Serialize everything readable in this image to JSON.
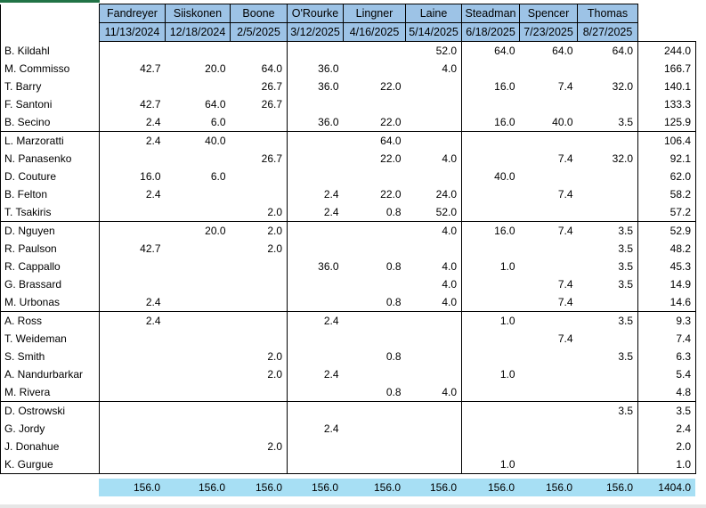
{
  "colors": {
    "header_bg": "#9DC3E6",
    "footer_bg": "#A7DFF4",
    "accent_green": "#217346"
  },
  "table": {
    "columns": [
      {
        "name": "Fandreyer",
        "date": "11/13/2024"
      },
      {
        "name": "Siiskonen",
        "date": "12/18/2024"
      },
      {
        "name": "Boone",
        "date": "2/5/2025"
      },
      {
        "name": "O'Rourke",
        "date": "3/12/2025"
      },
      {
        "name": "Lingner",
        "date": "4/16/2025"
      },
      {
        "name": "Laine",
        "date": "5/14/2025"
      },
      {
        "name": "Steadman",
        "date": "6/18/2025"
      },
      {
        "name": "Spencer",
        "date": "7/23/2025"
      },
      {
        "name": "Thomas",
        "date": "8/27/2025"
      }
    ],
    "rows": [
      {
        "label": "B. Kildahl",
        "values": [
          "",
          "",
          "",
          "",
          "",
          "52.0",
          "64.0",
          "64.0",
          "64.0"
        ],
        "total": "244.0"
      },
      {
        "label": "M. Commisso",
        "values": [
          "42.7",
          "20.0",
          "64.0",
          "36.0",
          "",
          "4.0",
          "",
          "",
          ""
        ],
        "total": "166.7"
      },
      {
        "label": "T. Barry",
        "values": [
          "",
          "",
          "26.7",
          "36.0",
          "22.0",
          "",
          "16.0",
          "7.4",
          "32.0"
        ],
        "total": "140.1"
      },
      {
        "label": "F. Santoni",
        "values": [
          "42.7",
          "64.0",
          "26.7",
          "",
          "",
          "",
          "",
          "",
          ""
        ],
        "total": "133.3"
      },
      {
        "label": "B. Secino",
        "values": [
          "2.4",
          "6.0",
          "",
          "36.0",
          "22.0",
          "",
          "16.0",
          "40.0",
          "3.5"
        ],
        "total": "125.9"
      },
      {
        "label": "L. Marzoratti",
        "values": [
          "2.4",
          "40.0",
          "",
          "",
          "64.0",
          "",
          "",
          "",
          ""
        ],
        "total": "106.4"
      },
      {
        "label": "N. Panasenko",
        "values": [
          "",
          "",
          "26.7",
          "",
          "22.0",
          "4.0",
          "",
          "7.4",
          "32.0"
        ],
        "total": "92.1"
      },
      {
        "label": "D. Couture",
        "values": [
          "16.0",
          "6.0",
          "",
          "",
          "",
          "",
          "40.0",
          "",
          ""
        ],
        "total": "62.0"
      },
      {
        "label": "B. Felton",
        "values": [
          "2.4",
          "",
          "",
          "2.4",
          "22.0",
          "24.0",
          "",
          "7.4",
          ""
        ],
        "total": "58.2"
      },
      {
        "label": "T. Tsakiris",
        "values": [
          "",
          "",
          "2.0",
          "2.4",
          "0.8",
          "52.0",
          "",
          "",
          ""
        ],
        "total": "57.2"
      },
      {
        "label": "D. Nguyen",
        "values": [
          "",
          "20.0",
          "2.0",
          "",
          "",
          "4.0",
          "16.0",
          "7.4",
          "3.5"
        ],
        "total": "52.9"
      },
      {
        "label": "R. Paulson",
        "values": [
          "42.7",
          "",
          "2.0",
          "",
          "",
          "",
          "",
          "",
          "3.5"
        ],
        "total": "48.2"
      },
      {
        "label": "R. Cappallo",
        "values": [
          "",
          "",
          "",
          "36.0",
          "0.8",
          "4.0",
          "1.0",
          "",
          "3.5"
        ],
        "total": "45.3"
      },
      {
        "label": "G. Brassard",
        "values": [
          "",
          "",
          "",
          "",
          "",
          "4.0",
          "",
          "7.4",
          "3.5"
        ],
        "total": "14.9"
      },
      {
        "label": "M. Urbonas",
        "values": [
          "2.4",
          "",
          "",
          "",
          "0.8",
          "4.0",
          "",
          "7.4",
          ""
        ],
        "total": "14.6"
      },
      {
        "label": "A. Ross",
        "values": [
          "2.4",
          "",
          "",
          "2.4",
          "",
          "",
          "1.0",
          "",
          "3.5"
        ],
        "total": "9.3"
      },
      {
        "label": "T. Weideman",
        "values": [
          "",
          "",
          "",
          "",
          "",
          "",
          "",
          "7.4",
          ""
        ],
        "total": "7.4"
      },
      {
        "label": "S. Smith",
        "values": [
          "",
          "",
          "2.0",
          "",
          "0.8",
          "",
          "",
          "",
          "3.5"
        ],
        "total": "6.3"
      },
      {
        "label": "A. Nandurbarkar",
        "values": [
          "",
          "",
          "2.0",
          "2.4",
          "",
          "",
          "1.0",
          "",
          ""
        ],
        "total": "5.4"
      },
      {
        "label": "M. Rivera",
        "values": [
          "",
          "",
          "",
          "",
          "0.8",
          "4.0",
          "",
          "",
          ""
        ],
        "total": "4.8"
      },
      {
        "label": "D. Ostrowski",
        "values": [
          "",
          "",
          "",
          "",
          "",
          "",
          "",
          "",
          "3.5"
        ],
        "total": "3.5"
      },
      {
        "label": "G. Jordy",
        "values": [
          "",
          "",
          "",
          "2.4",
          "",
          "",
          "",
          "",
          ""
        ],
        "total": "2.4"
      },
      {
        "label": "J. Donahue",
        "values": [
          "",
          "",
          "2.0",
          "",
          "",
          "",
          "",
          "",
          ""
        ],
        "total": "2.0"
      },
      {
        "label": "K. Gurgue",
        "values": [
          "",
          "",
          "",
          "",
          "",
          "",
          "1.0",
          "",
          ""
        ],
        "total": "1.0"
      }
    ],
    "footer": {
      "column_totals": [
        "156.0",
        "156.0",
        "156.0",
        "156.0",
        "156.0",
        "156.0",
        "156.0",
        "156.0",
        "156.0"
      ],
      "grand_total": "1404.0"
    }
  }
}
